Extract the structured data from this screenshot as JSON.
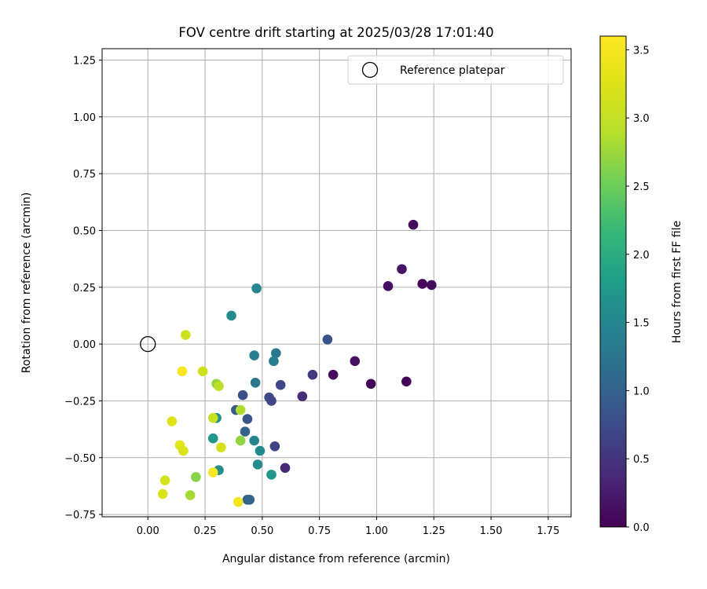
{
  "chart_data": {
    "type": "scatter",
    "title": "FOV centre drift starting at 2025/03/28 17:01:40",
    "xlabel": "Angular distance from reference (arcmin)",
    "ylabel": "Rotation from reference (arcmin)",
    "xlim": [
      -0.2,
      1.85
    ],
    "ylim": [
      -0.76,
      1.3
    ],
    "xticks": [
      "0.00",
      "0.25",
      "0.50",
      "0.75",
      "1.00",
      "1.25",
      "1.50",
      "1.75"
    ],
    "yticks": [
      "−0.75",
      "−0.50",
      "−0.25",
      "0.00",
      "0.25",
      "0.50",
      "0.75",
      "1.00",
      "1.25"
    ],
    "grid": true,
    "legend": {
      "position": "top-right",
      "entries": [
        "Reference platepar"
      ]
    },
    "reference_point": {
      "x": 0.0,
      "y": 0.0,
      "label": "Reference platepar"
    },
    "colorbar": {
      "label": "Hours from first FF file",
      "colormap": "viridis",
      "range": [
        0.0,
        3.6
      ],
      "ticks": [
        "0.0",
        "0.5",
        "1.0",
        "1.5",
        "2.0",
        "2.5",
        "3.0",
        "3.5"
      ]
    },
    "points": [
      {
        "x": 1.16,
        "y": 0.525,
        "c": 0.08
      },
      {
        "x": 1.11,
        "y": 0.33,
        "c": 0.18
      },
      {
        "x": 1.2,
        "y": 0.265,
        "c": 0.05
      },
      {
        "x": 1.24,
        "y": 0.26,
        "c": 0.1
      },
      {
        "x": 1.05,
        "y": 0.255,
        "c": 0.12
      },
      {
        "x": 1.13,
        "y": -0.165,
        "c": 0.04
      },
      {
        "x": 0.975,
        "y": -0.175,
        "c": 0.02
      },
      {
        "x": 0.905,
        "y": -0.075,
        "c": 0.15
      },
      {
        "x": 0.81,
        "y": -0.135,
        "c": 0.1
      },
      {
        "x": 0.785,
        "y": 0.02,
        "c": 0.85
      },
      {
        "x": 0.72,
        "y": -0.135,
        "c": 0.55
      },
      {
        "x": 0.675,
        "y": -0.23,
        "c": 0.4
      },
      {
        "x": 0.58,
        "y": -0.18,
        "c": 0.7
      },
      {
        "x": 0.6,
        "y": -0.545,
        "c": 0.35
      },
      {
        "x": 0.555,
        "y": -0.45,
        "c": 0.65
      },
      {
        "x": 0.56,
        "y": -0.04,
        "c": 1.3
      },
      {
        "x": 0.55,
        "y": -0.075,
        "c": 1.4
      },
      {
        "x": 0.53,
        "y": -0.235,
        "c": 0.75
      },
      {
        "x": 0.54,
        "y": -0.25,
        "c": 0.7
      },
      {
        "x": 0.475,
        "y": 0.245,
        "c": 1.5
      },
      {
        "x": 0.465,
        "y": -0.05,
        "c": 1.35
      },
      {
        "x": 0.47,
        "y": -0.17,
        "c": 1.3
      },
      {
        "x": 0.365,
        "y": 0.125,
        "c": 1.55
      },
      {
        "x": 0.415,
        "y": -0.225,
        "c": 0.8
      },
      {
        "x": 0.385,
        "y": -0.29,
        "c": 0.9
      },
      {
        "x": 0.435,
        "y": -0.33,
        "c": 0.85
      },
      {
        "x": 0.425,
        "y": -0.385,
        "c": 1.0
      },
      {
        "x": 0.465,
        "y": -0.425,
        "c": 1.45
      },
      {
        "x": 0.49,
        "y": -0.47,
        "c": 1.55
      },
      {
        "x": 0.48,
        "y": -0.53,
        "c": 1.6
      },
      {
        "x": 0.54,
        "y": -0.575,
        "c": 1.7
      },
      {
        "x": 0.435,
        "y": -0.685,
        "c": 0.95
      },
      {
        "x": 0.445,
        "y": -0.685,
        "c": 1.05
      },
      {
        "x": 0.31,
        "y": -0.555,
        "c": 1.6
      },
      {
        "x": 0.3,
        "y": -0.325,
        "c": 1.65
      },
      {
        "x": 0.285,
        "y": -0.415,
        "c": 1.7
      },
      {
        "x": 0.405,
        "y": -0.425,
        "c": 2.7
      },
      {
        "x": 0.405,
        "y": -0.29,
        "c": 2.85
      },
      {
        "x": 0.3,
        "y": -0.175,
        "c": 2.7
      },
      {
        "x": 0.31,
        "y": -0.185,
        "c": 2.95
      },
      {
        "x": 0.285,
        "y": -0.325,
        "c": 3.05
      },
      {
        "x": 0.32,
        "y": -0.455,
        "c": 3.15
      },
      {
        "x": 0.285,
        "y": -0.565,
        "c": 3.55
      },
      {
        "x": 0.395,
        "y": -0.695,
        "c": 3.45
      },
      {
        "x": 0.24,
        "y": -0.12,
        "c": 3.1
      },
      {
        "x": 0.165,
        "y": 0.04,
        "c": 3.1
      },
      {
        "x": 0.15,
        "y": -0.12,
        "c": 3.55
      },
      {
        "x": 0.105,
        "y": -0.34,
        "c": 3.25
      },
      {
        "x": 0.14,
        "y": -0.445,
        "c": 3.3
      },
      {
        "x": 0.155,
        "y": -0.47,
        "c": 3.2
      },
      {
        "x": 0.21,
        "y": -0.585,
        "c": 2.65
      },
      {
        "x": 0.075,
        "y": -0.6,
        "c": 3.15
      },
      {
        "x": 0.065,
        "y": -0.66,
        "c": 3.2
      },
      {
        "x": 0.185,
        "y": -0.665,
        "c": 2.8
      }
    ]
  }
}
